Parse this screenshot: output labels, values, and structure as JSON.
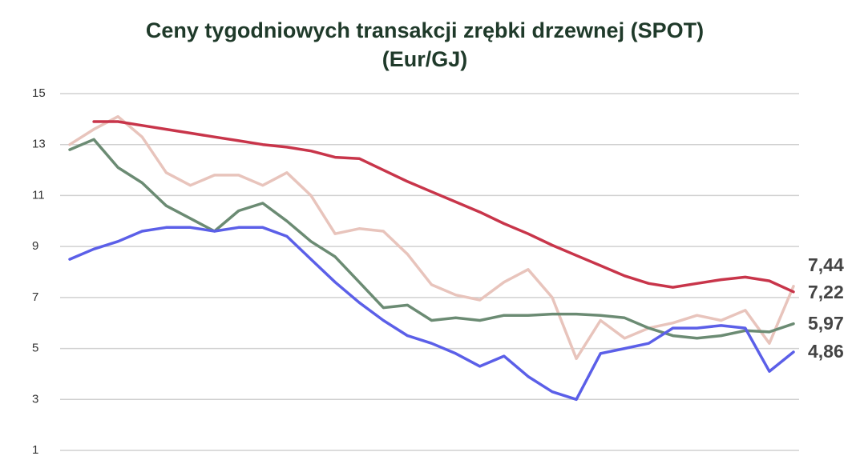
{
  "chart_data": {
    "type": "line",
    "title": [
      "Ceny tygodniowych transakcji zrębki drzewnej (SPOT)",
      "(Eur/GJ)"
    ],
    "categories": [
      null,
      null,
      null,
      null,
      null,
      null,
      null,
      null,
      null,
      null,
      null,
      null,
      null,
      null,
      null,
      null,
      null,
      null,
      null,
      null,
      null,
      null,
      null,
      null,
      null,
      null,
      null,
      null,
      null,
      null,
      null
    ],
    "ylim": [
      1,
      15
    ],
    "yticks": [
      1,
      3,
      5,
      7,
      9,
      11,
      13,
      15
    ],
    "grid": true,
    "series": [
      {
        "color": "#e8c4bc",
        "values": [
          13.0,
          13.6,
          14.1,
          13.3,
          11.9,
          11.4,
          11.8,
          11.8,
          11.4,
          11.9,
          11.0,
          9.5,
          9.7,
          9.6,
          8.7,
          7.5,
          7.1,
          6.9,
          7.6,
          8.1,
          7.0,
          4.6,
          6.1,
          5.4,
          5.8,
          6.0,
          6.3,
          6.1,
          6.5,
          5.2,
          7.44
        ],
        "value_labels": [
          null,
          null,
          null,
          null,
          null,
          null,
          null,
          null,
          null,
          null,
          null,
          null,
          null,
          null,
          null,
          null,
          null,
          null,
          null,
          null,
          null,
          null,
          null,
          null,
          null,
          null,
          null,
          null,
          null,
          null,
          "7,44"
        ]
      },
      {
        "color": "#c8354a",
        "values": [
          null,
          13.9,
          13.9,
          13.75,
          13.6,
          13.45,
          13.3,
          13.15,
          13.0,
          12.9,
          12.75,
          12.5,
          12.45,
          12.0,
          11.55,
          11.15,
          10.75,
          10.35,
          9.9,
          9.5,
          9.05,
          8.65,
          8.25,
          7.85,
          7.55,
          7.4,
          7.55,
          7.7,
          7.8,
          7.65,
          7.22
        ],
        "value_labels": [
          null,
          null,
          null,
          null,
          null,
          null,
          null,
          null,
          null,
          null,
          null,
          null,
          null,
          null,
          null,
          null,
          null,
          null,
          null,
          null,
          null,
          null,
          null,
          null,
          null,
          null,
          null,
          null,
          null,
          null,
          "7,22"
        ]
      },
      {
        "color": "#6b8b73",
        "values": [
          12.8,
          13.2,
          12.1,
          11.5,
          10.6,
          10.1,
          9.6,
          10.4,
          10.7,
          10.0,
          9.2,
          8.6,
          7.6,
          6.6,
          6.7,
          6.1,
          6.2,
          6.1,
          6.3,
          6.3,
          6.35,
          6.35,
          6.3,
          6.2,
          5.8,
          5.5,
          5.4,
          5.5,
          5.7,
          5.65,
          5.97
        ],
        "value_labels": [
          null,
          null,
          null,
          null,
          null,
          null,
          null,
          null,
          null,
          null,
          null,
          null,
          null,
          null,
          null,
          null,
          null,
          null,
          null,
          null,
          null,
          null,
          null,
          null,
          null,
          null,
          null,
          null,
          null,
          null,
          "5,97"
        ]
      },
      {
        "color": "#5b5fe8",
        "values": [
          8.5,
          8.9,
          9.2,
          9.6,
          9.75,
          9.75,
          9.6,
          9.75,
          9.75,
          9.4,
          8.5,
          7.6,
          6.8,
          6.1,
          5.5,
          5.2,
          4.8,
          4.3,
          4.7,
          3.9,
          3.3,
          3.0,
          4.8,
          5.0,
          5.2,
          5.8,
          5.8,
          5.9,
          5.8,
          4.1,
          4.86
        ],
        "value_labels": [
          null,
          null,
          null,
          null,
          null,
          null,
          null,
          null,
          null,
          null,
          null,
          null,
          null,
          null,
          null,
          null,
          null,
          null,
          null,
          null,
          null,
          null,
          null,
          null,
          null,
          null,
          null,
          null,
          null,
          null,
          "4,86"
        ]
      }
    ]
  }
}
